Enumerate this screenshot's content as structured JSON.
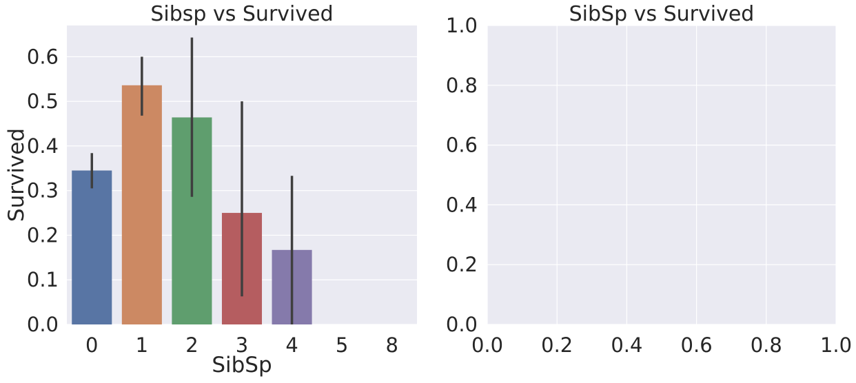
{
  "chart_data": [
    {
      "type": "bar",
      "title": "Sibsp vs Survived",
      "xlabel": "SibSp",
      "ylabel": "Survived",
      "categories": [
        "0",
        "1",
        "2",
        "3",
        "4",
        "5",
        "8"
      ],
      "values": [
        0.345,
        0.536,
        0.464,
        0.25,
        0.167,
        0.0,
        0.0
      ],
      "error_low": [
        0.305,
        0.468,
        0.286,
        0.063,
        0.0,
        0.0,
        0.0
      ],
      "error_high": [
        0.384,
        0.6,
        0.643,
        0.5,
        0.333,
        0.0,
        0.0
      ],
      "colors": [
        "#5875a4",
        "#cc8963",
        "#5f9e6e",
        "#b55d60",
        "#857aab",
        "#8d7866",
        "#d095bf"
      ],
      "errorbar_color": "#3f3f3f",
      "ylim": [
        0,
        0.67
      ],
      "yticks": [
        "0.0",
        "0.1",
        "0.2",
        "0.3",
        "0.4",
        "0.5",
        "0.6"
      ],
      "grid": true,
      "background": "#eaeaf2"
    },
    {
      "type": "bar",
      "title": "SibSp vs Survived",
      "xlabel": "",
      "ylabel": "",
      "categories": [],
      "values": [],
      "xlim": [
        0,
        1
      ],
      "ylim": [
        0,
        1
      ],
      "xticks": [
        "0.0",
        "0.2",
        "0.4",
        "0.6",
        "0.8",
        "1.0"
      ],
      "yticks": [
        "0.0",
        "0.2",
        "0.4",
        "0.6",
        "0.8",
        "1.0"
      ],
      "grid": true,
      "background": "#eaeaf2"
    }
  ]
}
